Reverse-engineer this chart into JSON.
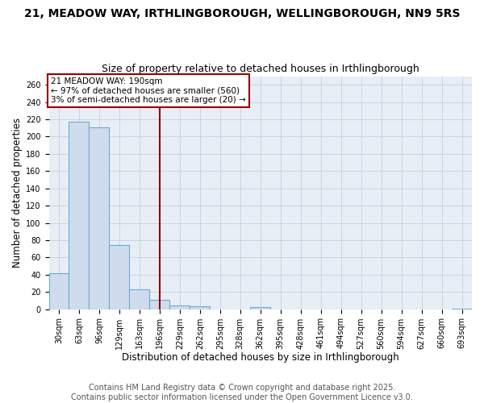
{
  "title": "21, MEADOW WAY, IRTHLINGBOROUGH, WELLINGBOROUGH, NN9 5RS",
  "subtitle": "Size of property relative to detached houses in Irthlingborough",
  "xlabel": "Distribution of detached houses by size in Irthlingborough",
  "ylabel": "Number of detached properties",
  "bar_color": "#cfdcee",
  "bar_edge_color": "#6aaad4",
  "background_color": "#ffffff",
  "plot_bg_color": "#e8eef6",
  "grid_color": "#c8d0dc",
  "categories": [
    "30sqm",
    "63sqm",
    "96sqm",
    "129sqm",
    "163sqm",
    "196sqm",
    "229sqm",
    "262sqm",
    "295sqm",
    "328sqm",
    "362sqm",
    "395sqm",
    "428sqm",
    "461sqm",
    "494sqm",
    "527sqm",
    "560sqm",
    "594sqm",
    "627sqm",
    "660sqm",
    "693sqm"
  ],
  "values": [
    42,
    217,
    211,
    74,
    23,
    11,
    4,
    3,
    0,
    0,
    2,
    0,
    0,
    0,
    0,
    0,
    0,
    0,
    0,
    0,
    1
  ],
  "ylim": [
    0,
    270
  ],
  "yticks": [
    0,
    20,
    40,
    60,
    80,
    100,
    120,
    140,
    160,
    180,
    200,
    220,
    240,
    260
  ],
  "vline_x_index": 5,
  "vline_color": "#8b0000",
  "annotation_title": "21 MEADOW WAY: 190sqm",
  "annotation_line1": "← 97% of detached houses are smaller (560)",
  "annotation_line2": "3% of semi-detached houses are larger (20) →",
  "annotation_box_color": "#ffffff",
  "annotation_box_edge": "#9b0000",
  "footer1": "Contains HM Land Registry data © Crown copyright and database right 2025.",
  "footer2": "Contains public sector information licensed under the Open Government Licence v3.0.",
  "title_fontsize": 10,
  "subtitle_fontsize": 9,
  "tick_fontsize": 7,
  "label_fontsize": 8.5,
  "footer_fontsize": 7
}
